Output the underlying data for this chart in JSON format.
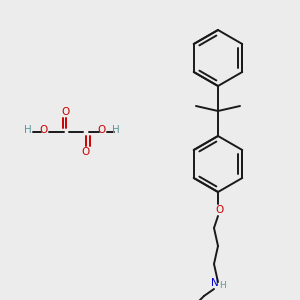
{
  "bg_color": "#ececec",
  "bond_color": "#1a1a1a",
  "o_color": "#cc0000",
  "n_color": "#0000cc",
  "h_color": "#5a9a9a",
  "lw": 1.4,
  "fig_w": 3.0,
  "fig_h": 3.0,
  "dpi": 100,
  "xlim": [
    0,
    300
  ],
  "ylim": [
    0,
    300
  ]
}
